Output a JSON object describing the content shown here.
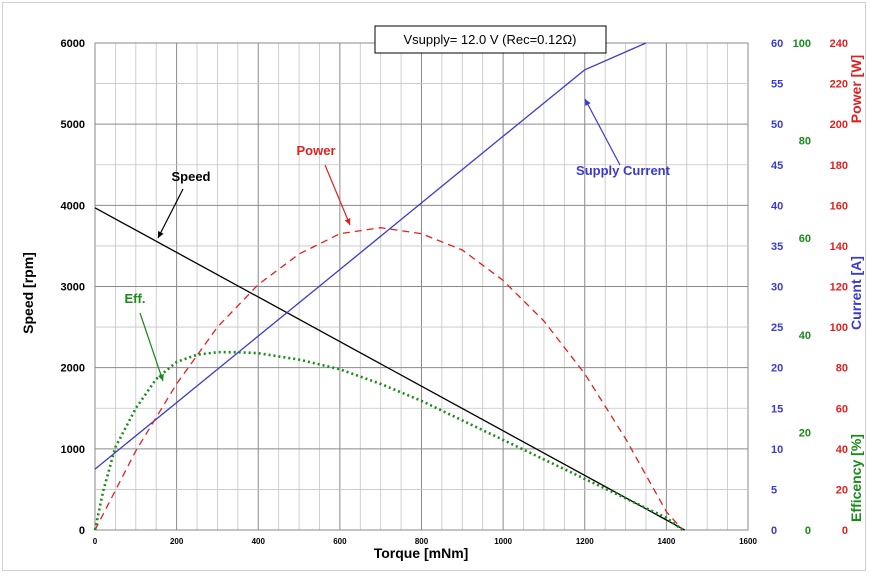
{
  "chart_data": {
    "type": "line",
    "title": "Vsupply=  12.0  V  (Rec=0.12Ω)",
    "xlabel": "Torque [mNm]",
    "xlim": [
      0,
      1600
    ],
    "x_ticks": [
      "0",
      "200",
      "400",
      "600",
      "800",
      "1000",
      "1200",
      "1400",
      "1600"
    ],
    "grid": true,
    "axes": {
      "speed": {
        "label": "Speed [rpm]",
        "range": [
          0,
          6000
        ],
        "ticks": [
          "0",
          "1000",
          "2000",
          "3000",
          "4000",
          "5000",
          "6000"
        ],
        "color": "#000000"
      },
      "current": {
        "label": "Current [A]",
        "range": [
          0,
          60
        ],
        "ticks": [
          "0",
          "5",
          "10",
          "15",
          "20",
          "25",
          "30",
          "35",
          "40",
          "45",
          "50",
          "55",
          "60"
        ],
        "color": "#3a3ad0"
      },
      "efficiency": {
        "label": "Efficency [%]",
        "range": [
          0,
          100
        ],
        "ticks": [
          "0",
          "20",
          "40",
          "60",
          "80",
          "100"
        ],
        "color": "#1a8a1a"
      },
      "power": {
        "label": "Power [W]",
        "range": [
          0,
          240
        ],
        "ticks": [
          "0",
          "20",
          "40",
          "60",
          "80",
          "100",
          "120",
          "140",
          "160",
          "180",
          "200",
          "220",
          "240"
        ],
        "color": "#e02020"
      }
    },
    "series": [
      {
        "name": "Speed",
        "axis": "speed",
        "color": "#000000",
        "style": "solid",
        "x": [
          0,
          1445
        ],
        "y": [
          3970,
          0
        ]
      },
      {
        "name": "Supply Current",
        "axis": "current",
        "color": "#3a3ad0",
        "style": "solid",
        "x": [
          0,
          200,
          400,
          600,
          800,
          1000,
          1200,
          1350
        ],
        "y": [
          7.5,
          15.7,
          23.9,
          32.1,
          40.3,
          48.5,
          56.7,
          60
        ]
      },
      {
        "name": "Power",
        "axis": "power",
        "color": "#e02020",
        "style": "dashed",
        "x": [
          0,
          100,
          200,
          300,
          400,
          500,
          600,
          700,
          800,
          900,
          1000,
          1100,
          1200,
          1300,
          1400,
          1440
        ],
        "y": [
          0,
          39,
          72,
          100,
          121,
          136,
          146,
          149,
          146,
          138,
          123,
          103,
          77,
          45,
          9,
          0
        ]
      },
      {
        "name": "Eff.",
        "axis": "efficiency",
        "color": "#1a8a1a",
        "style": "dotted",
        "x": [
          0,
          20,
          50,
          100,
          150,
          200,
          250,
          300,
          350,
          400,
          500,
          600,
          700,
          800,
          900,
          1000,
          1100,
          1200,
          1300,
          1400,
          1440
        ],
        "y": [
          0,
          8,
          17,
          25,
          31,
          34.5,
          36,
          36.5,
          36.5,
          36.3,
          35,
          33,
          30,
          26.5,
          22.5,
          18.5,
          14.5,
          10.5,
          6.5,
          2.5,
          0
        ]
      }
    ],
    "annotations": [
      {
        "text": "Speed",
        "color": "#000000"
      },
      {
        "text": "Power",
        "color": "#e02020"
      },
      {
        "text": "Supply Current",
        "color": "#3a3ad0"
      },
      {
        "text": "Eff.",
        "color": "#1a8a1a"
      }
    ]
  }
}
